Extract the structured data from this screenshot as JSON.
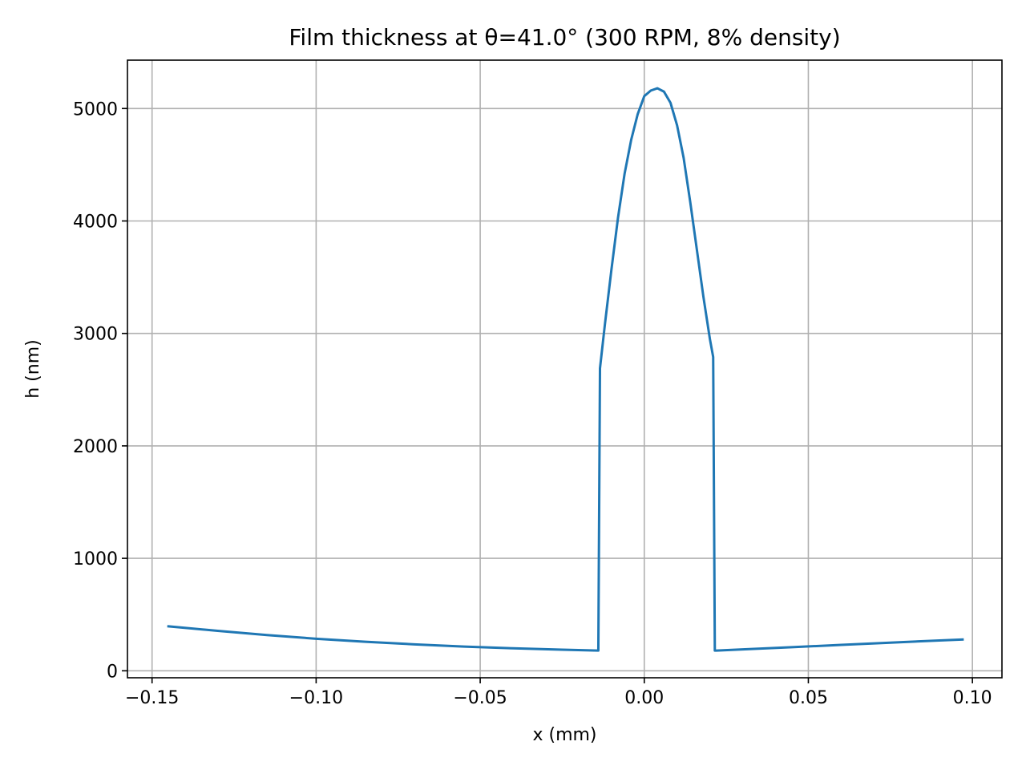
{
  "chart_data": {
    "type": "line",
    "title": "Film thickness at θ=41.0° (300 RPM, 8% density)",
    "xlabel": "x (mm)",
    "ylabel": "h (nm)",
    "xlim": [
      -0.1575,
      0.109
    ],
    "ylim": [
      -62,
      5430
    ],
    "x_ticks": [
      -0.15,
      -0.1,
      -0.05,
      0.0,
      0.05,
      0.1
    ],
    "x_tick_labels": [
      "−0.15",
      "−0.10",
      "−0.05",
      "0.00",
      "0.05",
      "0.10"
    ],
    "y_ticks": [
      0,
      1000,
      2000,
      3000,
      4000,
      5000
    ],
    "y_tick_labels": [
      "0",
      "1000",
      "2000",
      "3000",
      "4000",
      "5000"
    ],
    "grid": true,
    "legend": "none",
    "series": [
      {
        "color": "#1f77b4",
        "x": [
          -0.145,
          -0.13,
          -0.115,
          -0.1,
          -0.085,
          -0.07,
          -0.055,
          -0.04,
          -0.025,
          -0.014,
          -0.0135,
          -0.012,
          -0.01,
          -0.008,
          -0.006,
          -0.004,
          -0.002,
          0.0,
          0.002,
          0.004,
          0.006,
          0.008,
          0.01,
          0.012,
          0.014,
          0.016,
          0.018,
          0.02,
          0.021,
          0.0215,
          0.022,
          0.03,
          0.045,
          0.06,
          0.075,
          0.09,
          0.097
        ],
        "y": [
          395,
          355,
          318,
          285,
          258,
          235,
          215,
          200,
          188,
          180,
          2690,
          3080,
          3570,
          4030,
          4420,
          4720,
          4950,
          5110,
          5160,
          5180,
          5150,
          5050,
          4850,
          4560,
          4170,
          3750,
          3330,
          2950,
          2790,
          180,
          180,
          190,
          210,
          230,
          250,
          270,
          278
        ]
      }
    ]
  }
}
